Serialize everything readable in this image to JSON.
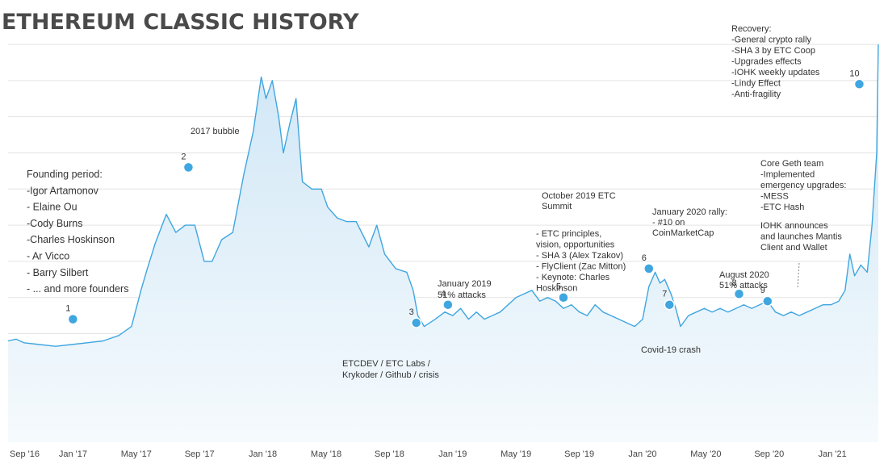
{
  "chart_data": {
    "type": "area",
    "title": "ETHEREUM CLASSIC HISTORY",
    "xlabel": "",
    "ylabel": "",
    "grid": true,
    "ylim": [
      0,
      110
    ],
    "xlim": [
      0,
      55
    ],
    "x_ticks": [
      {
        "label": "Sep '16",
        "x": 0
      },
      {
        "label": "Jan '17",
        "x": 4
      },
      {
        "label": "May '17",
        "x": 8
      },
      {
        "label": "Sep '17",
        "x": 12
      },
      {
        "label": "Jan '18",
        "x": 16
      },
      {
        "label": "May '18",
        "x": 20
      },
      {
        "label": "Sep '18",
        "x": 24
      },
      {
        "label": "Jan '19",
        "x": 28
      },
      {
        "label": "May '19",
        "x": 32
      },
      {
        "label": "Sep '19",
        "x": 36
      },
      {
        "label": "Jan '20",
        "x": 40
      },
      {
        "label": "May '20",
        "x": 44
      },
      {
        "label": "Sep '20",
        "x": 48
      },
      {
        "label": "Jan '21",
        "x": 52
      }
    ],
    "series": [
      {
        "name": "ETC",
        "points": [
          [
            0,
            28
          ],
          [
            0.5,
            28.5
          ],
          [
            1,
            27.5
          ],
          [
            2,
            27
          ],
          [
            3,
            26.5
          ],
          [
            4,
            27
          ],
          [
            5,
            27.5
          ],
          [
            6,
            28
          ],
          [
            7,
            29.5
          ],
          [
            7.8,
            32
          ],
          [
            8.4,
            42
          ],
          [
            8.8,
            48
          ],
          [
            9.3,
            55
          ],
          [
            10,
            63
          ],
          [
            10.6,
            58
          ],
          [
            11.2,
            60
          ],
          [
            11.8,
            60
          ],
          [
            12.4,
            50
          ],
          [
            12.9,
            50
          ],
          [
            13.5,
            56
          ],
          [
            14.2,
            58
          ],
          [
            14.9,
            74
          ],
          [
            15.5,
            86
          ],
          [
            16,
            101
          ],
          [
            16.3,
            95
          ],
          [
            16.7,
            100
          ],
          [
            17.1,
            90
          ],
          [
            17.4,
            80
          ],
          [
            17.8,
            88
          ],
          [
            18.2,
            95
          ],
          [
            18.6,
            72
          ],
          [
            19.2,
            70
          ],
          [
            19.8,
            70
          ],
          [
            20.2,
            65
          ],
          [
            20.8,
            62
          ],
          [
            21.4,
            61
          ],
          [
            22,
            61
          ],
          [
            22.8,
            54
          ],
          [
            23.3,
            60
          ],
          [
            23.8,
            52
          ],
          [
            24.5,
            48
          ],
          [
            25.2,
            47
          ],
          [
            25.6,
            42
          ],
          [
            25.9,
            35
          ],
          [
            26.3,
            32
          ],
          [
            27,
            34
          ],
          [
            27.6,
            36
          ],
          [
            28.1,
            35
          ],
          [
            28.6,
            37
          ],
          [
            29.1,
            34
          ],
          [
            29.6,
            36
          ],
          [
            30.1,
            34
          ],
          [
            30.6,
            35
          ],
          [
            31.1,
            36
          ],
          [
            31.6,
            38
          ],
          [
            32.1,
            40
          ],
          [
            32.6,
            41
          ],
          [
            33.1,
            42
          ],
          [
            33.6,
            39
          ],
          [
            34.1,
            40
          ],
          [
            34.6,
            39
          ],
          [
            35.1,
            37
          ],
          [
            35.6,
            38
          ],
          [
            36.1,
            36
          ],
          [
            36.6,
            35
          ],
          [
            37.1,
            38
          ],
          [
            37.6,
            36
          ],
          [
            38.1,
            35
          ],
          [
            38.6,
            34
          ],
          [
            39.1,
            33
          ],
          [
            39.6,
            32
          ],
          [
            40.1,
            34
          ],
          [
            40.5,
            43
          ],
          [
            40.9,
            47
          ],
          [
            41.2,
            44
          ],
          [
            41.5,
            45
          ],
          [
            41.9,
            41
          ],
          [
            42.2,
            37
          ],
          [
            42.5,
            32
          ],
          [
            43,
            35
          ],
          [
            43.5,
            36
          ],
          [
            44,
            37
          ],
          [
            44.5,
            36
          ],
          [
            45,
            37
          ],
          [
            45.5,
            36
          ],
          [
            46,
            37
          ],
          [
            46.5,
            38
          ],
          [
            47,
            37
          ],
          [
            47.5,
            38
          ],
          [
            48,
            39
          ],
          [
            48.5,
            36
          ],
          [
            49,
            35
          ],
          [
            49.5,
            36
          ],
          [
            50,
            35
          ],
          [
            50.5,
            36
          ],
          [
            51,
            37
          ],
          [
            51.5,
            38
          ],
          [
            52,
            38
          ],
          [
            52.5,
            39
          ],
          [
            52.9,
            42
          ],
          [
            53.2,
            52
          ],
          [
            53.5,
            46
          ],
          [
            53.9,
            49
          ],
          [
            54.3,
            47
          ],
          [
            54.6,
            60
          ],
          [
            54.9,
            80
          ],
          [
            55,
            110
          ]
        ]
      }
    ],
    "events": [
      {
        "num": "1",
        "x": 4.1,
        "y": 34,
        "label": []
      },
      {
        "num": "2",
        "x": 11.4,
        "y": 76,
        "label": [
          "2017 bubble"
        ]
      },
      {
        "num": "3",
        "x": 25.8,
        "y": 33,
        "label": [
          "ETCDEV / ETC Labs /",
          "Krykoder / Github / crisis"
        ]
      },
      {
        "num": "4",
        "x": 27.8,
        "y": 38,
        "label": [
          "January 2019",
          "51% attacks"
        ]
      },
      {
        "num": "5",
        "x": 35.1,
        "y": 40,
        "label": []
      },
      {
        "num": "6",
        "x": 40.5,
        "y": 48,
        "label": []
      },
      {
        "num": "7",
        "x": 41.8,
        "y": 38,
        "label": []
      },
      {
        "num": "8",
        "x": 46.2,
        "y": 41,
        "label": [
          "August 2020",
          "51% attacks"
        ]
      },
      {
        "num": "9",
        "x": 48.0,
        "y": 39,
        "label": []
      },
      {
        "num": "10",
        "x": 53.8,
        "y": 99,
        "label": []
      }
    ],
    "annotations": {
      "founding": [
        "Founding period:",
        "-Igor Artamonov",
        "- Elaine Ou",
        "-Cody Burns",
        "-Charles Hoskinson",
        "- Ar Vicco",
        "- Barry Silbert",
        "- ... and more founders"
      ],
      "summit": [
        "October 2019 ETC",
        "Summit"
      ],
      "summit_items": [
        "- ETC principles,",
        "vision, opportunities",
        "- SHA 3 (Alex Tzakov)",
        "- FlyClient (Zac Mitton)",
        "- Keynote: Charles",
        "Hoskinson"
      ],
      "rally": [
        "January 2020 rally:",
        "- #10 on",
        "CoinMarketCap"
      ],
      "covid": [
        "Covid-19 crash"
      ],
      "coregeth": [
        "Core Geth team",
        "-Implemented",
        "emergency upgrades:",
        "-MESS",
        "-ETC Hash"
      ],
      "iohk": [
        "IOHK announces",
        "and launches Mantis",
        "Client and Wallet"
      ],
      "recovery": [
        "Recovery:",
        "-General crypto rally",
        "-SHA 3 by ETC Coop",
        "-Upgrades effects",
        "-IOHK weekly updates",
        "-Lindy Effect",
        "-Anti-fragility"
      ]
    },
    "colors": {
      "line": "#3fa6e0",
      "fill_top": "#cfe6f6",
      "fill_bottom": "#f5fafd",
      "dot": "#3fa6e0",
      "grid": "#e3e3e3"
    }
  }
}
